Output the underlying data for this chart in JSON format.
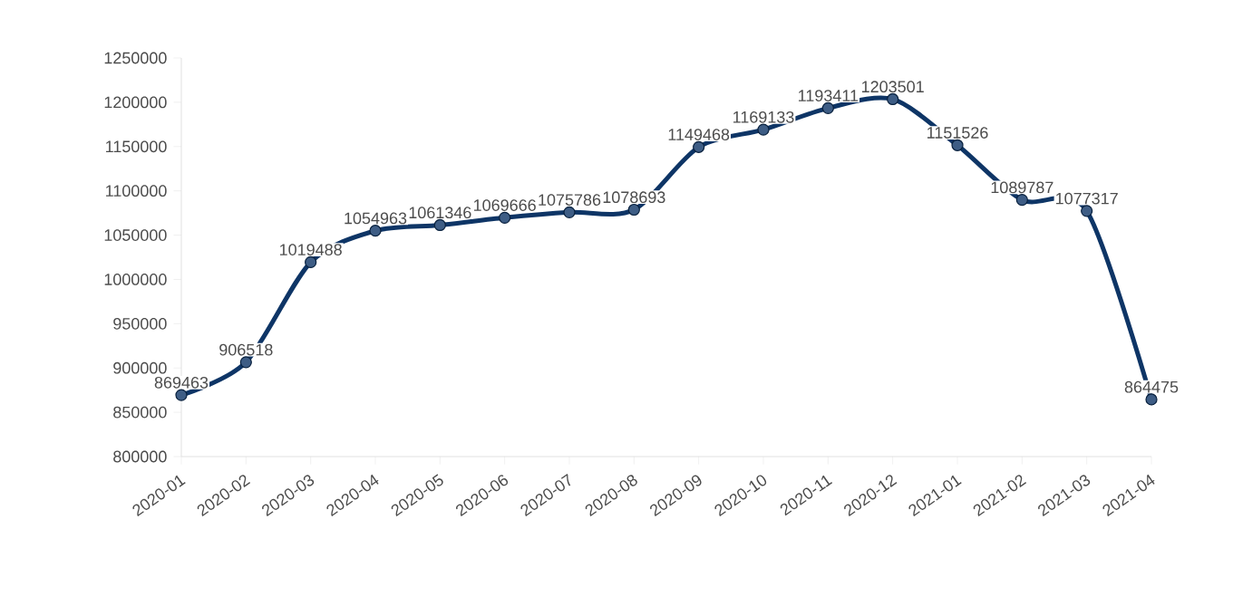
{
  "chart_data": {
    "type": "line",
    "categories": [
      "2020-01",
      "2020-02",
      "2020-03",
      "2020-04",
      "2020-05",
      "2020-06",
      "2020-07",
      "2020-08",
      "2020-09",
      "2020-10",
      "2020-11",
      "2020-12",
      "2021-01",
      "2021-02",
      "2021-03",
      "2021-04"
    ],
    "values": [
      869463,
      906518,
      1019488,
      1054963,
      1061346,
      1069666,
      1075786,
      1078693,
      1149468,
      1169133,
      1193411,
      1203501,
      1151526,
      1089787,
      1077317,
      864475
    ],
    "color": "#0e3566",
    "ylim": [
      800000,
      1250000
    ],
    "yticks": [
      800000,
      850000,
      900000,
      950000,
      1000000,
      1050000,
      1100000,
      1150000,
      1200000,
      1250000
    ],
    "marker": "circle",
    "line_style": "solid",
    "data_labels": true
  }
}
